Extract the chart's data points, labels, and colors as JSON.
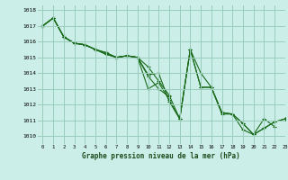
{
  "title": "Graphe pression niveau de la mer (hPa)",
  "bg_color": "#cceee8",
  "grid_color": "#99ccbb",
  "line_color": "#1a6b1a",
  "xlim": [
    -0.5,
    23
  ],
  "ylim": [
    1009.5,
    1018.3
  ],
  "yticks": [
    1010,
    1011,
    1012,
    1013,
    1014,
    1015,
    1016,
    1017,
    1018
  ],
  "xticks": [
    0,
    1,
    2,
    3,
    4,
    5,
    6,
    7,
    8,
    9,
    10,
    11,
    12,
    13,
    14,
    15,
    16,
    17,
    18,
    19,
    20,
    21,
    22,
    23
  ],
  "series": [
    {
      "x": [
        0,
        1,
        2,
        3,
        4,
        5,
        6,
        7,
        8,
        9,
        10,
        11,
        12,
        13,
        14,
        15,
        16,
        17,
        18,
        19,
        20,
        21,
        22
      ],
      "y": [
        1017.0,
        1017.5,
        1016.3,
        1015.9,
        1015.8,
        1015.5,
        1015.3,
        1015.0,
        1015.1,
        1015.0,
        1013.0,
        1013.4,
        1012.3,
        1011.1,
        1015.5,
        1014.0,
        1013.1,
        1011.4,
        1011.4,
        1010.8,
        1010.1,
        1011.1,
        1010.6
      ]
    },
    {
      "x": [
        0,
        1,
        2,
        3,
        4,
        5,
        6,
        7,
        8,
        9,
        10,
        11,
        12
      ],
      "y": [
        1017.0,
        1017.5,
        1016.3,
        1015.9,
        1015.8,
        1015.5,
        1015.3,
        1015.0,
        1015.1,
        1015.0,
        1013.8,
        1013.0,
        1012.5
      ]
    },
    {
      "x": [
        0,
        1,
        2,
        3,
        4,
        5,
        6,
        7,
        8,
        9,
        10,
        11,
        12,
        13,
        14,
        15,
        16,
        17,
        18,
        19,
        20,
        21,
        22,
        23
      ],
      "y": [
        1017.0,
        1017.5,
        1016.3,
        1015.9,
        1015.8,
        1015.5,
        1015.2,
        1015.0,
        1015.1,
        1015.0,
        1014.4,
        1013.5,
        1012.6,
        1011.1,
        1015.5,
        1013.1,
        1013.1,
        1011.5,
        1011.4,
        1010.4,
        1010.1,
        1010.5,
        1010.9,
        1011.1
      ]
    },
    {
      "x": [
        0,
        1,
        2,
        3,
        4,
        5,
        6,
        7,
        8,
        9,
        10,
        11,
        12,
        13,
        14,
        15,
        16,
        17,
        18,
        19,
        20,
        21,
        22,
        23
      ],
      "y": [
        1017.0,
        1017.5,
        1016.3,
        1015.9,
        1015.8,
        1015.5,
        1015.2,
        1015.0,
        1015.1,
        1015.0,
        1013.9,
        1014.0,
        1012.2,
        1011.1,
        1015.5,
        1013.1,
        1013.1,
        1011.5,
        1011.4,
        1010.8,
        1010.1,
        1010.5,
        1010.9,
        1011.1
      ]
    }
  ]
}
